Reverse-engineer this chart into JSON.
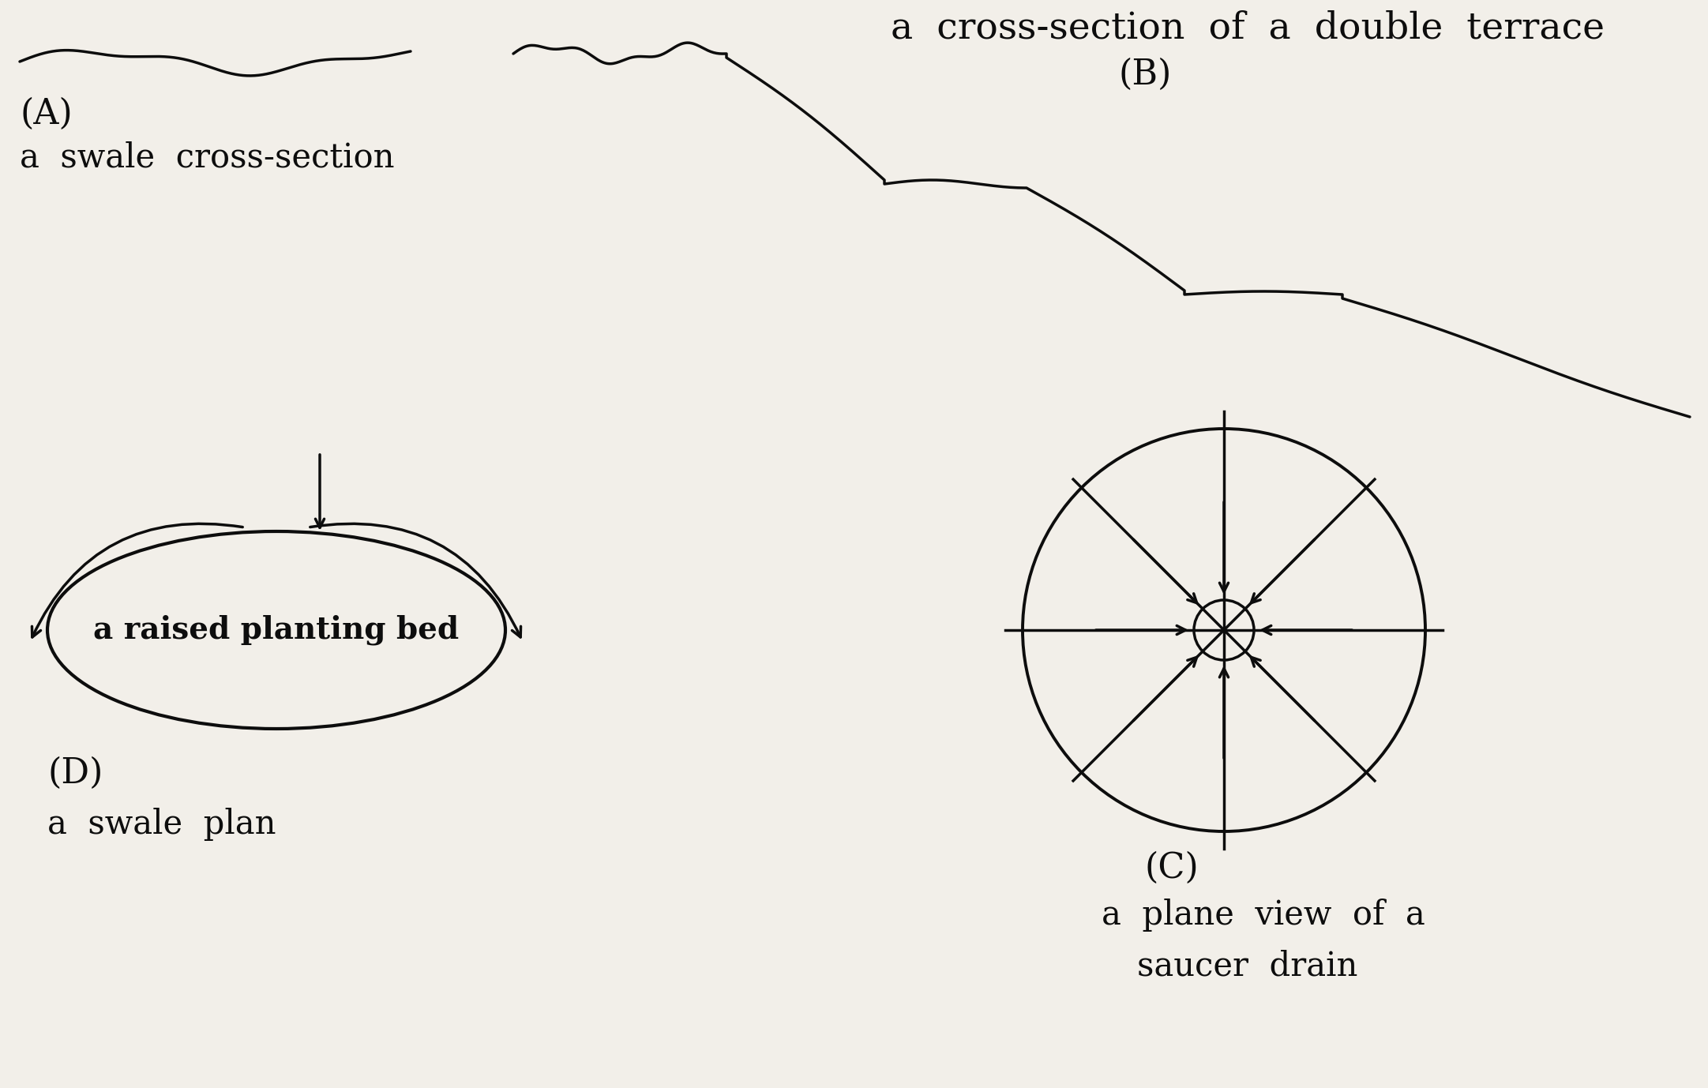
{
  "bg_color": "#f2efe9",
  "line_color": "#0d0d0d",
  "text_color": "#0d0d0d",
  "label_A": "(A)",
  "label_A_sub": "a  swale  cross-section",
  "label_B": "(B)",
  "label_B_title": "a  cross-section  of  a  double  terrace",
  "label_C": "(C)",
  "label_D": "(D)",
  "label_D_sub": "a  swale  plan",
  "label_C_sub1": "a  plane  view  of  a",
  "label_C_sub2": "saucer  drain",
  "raised_bed_label": "a raised planting bed",
  "font_size_large": 32,
  "font_size_sub": 30,
  "font_size_bed": 28,
  "font_size_title": 34
}
